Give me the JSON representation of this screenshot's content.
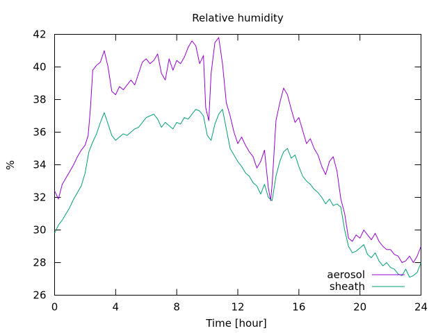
{
  "chart_data": {
    "type": "line",
    "title": "Relative humidity",
    "xlabel": "Time [hour]",
    "ylabel": "%",
    "xlim": [
      0,
      24
    ],
    "ylim": [
      26,
      42
    ],
    "xticks": [
      0,
      4,
      8,
      12,
      16,
      20,
      24
    ],
    "yticks": [
      26,
      28,
      30,
      32,
      34,
      36,
      38,
      40,
      42
    ],
    "grid": false,
    "legend_position": "bottom-right",
    "series": [
      {
        "name": "aerosol",
        "color": "#9400d3",
        "x": [
          0,
          0.25,
          0.5,
          0.75,
          1.0,
          1.25,
          1.5,
          1.75,
          2.0,
          2.2,
          2.35,
          2.5,
          2.75,
          3.0,
          3.25,
          3.5,
          3.75,
          4.0,
          4.25,
          4.5,
          4.75,
          5.0,
          5.25,
          5.5,
          5.75,
          6.0,
          6.25,
          6.5,
          6.75,
          7.0,
          7.25,
          7.5,
          7.75,
          8.0,
          8.25,
          8.5,
          8.75,
          9.0,
          9.25,
          9.5,
          9.75,
          9.9,
          10.1,
          10.25,
          10.5,
          10.75,
          11.0,
          11.25,
          11.5,
          11.75,
          12.0,
          12.25,
          12.5,
          12.75,
          13.0,
          13.25,
          13.5,
          13.75,
          14.0,
          14.15,
          14.25,
          14.5,
          14.75,
          15.0,
          15.25,
          15.5,
          15.75,
          16.0,
          16.25,
          16.5,
          16.75,
          17.0,
          17.25,
          17.5,
          17.75,
          18.0,
          18.25,
          18.5,
          18.75,
          19.0,
          19.25,
          19.5,
          19.75,
          20.0,
          20.25,
          20.5,
          20.75,
          21.0,
          21.25,
          21.5,
          21.75,
          22.0,
          22.25,
          22.5,
          22.75,
          23.0,
          23.25,
          23.5,
          23.75,
          24.0
        ],
        "y": [
          32.4,
          31.9,
          32.8,
          33.2,
          33.6,
          34.0,
          34.5,
          34.9,
          35.2,
          35.8,
          37.5,
          39.8,
          40.1,
          40.3,
          41.0,
          40.0,
          38.5,
          38.3,
          38.8,
          38.6,
          38.9,
          39.2,
          38.9,
          39.6,
          40.3,
          40.5,
          40.2,
          40.4,
          40.8,
          39.6,
          39.2,
          40.5,
          39.8,
          40.4,
          40.2,
          40.6,
          41.2,
          41.6,
          41.3,
          40.2,
          40.7,
          37.5,
          36.7,
          39.6,
          41.5,
          41.8,
          40.2,
          37.8,
          37.0,
          36.0,
          35.3,
          35.7,
          35.2,
          34.8,
          34.5,
          33.8,
          34.2,
          34.9,
          32.6,
          31.8,
          32.8,
          36.7,
          37.8,
          38.7,
          38.3,
          37.4,
          36.6,
          36.9,
          36.1,
          35.3,
          35.6,
          35.0,
          34.6,
          33.9,
          33.4,
          34.2,
          34.5,
          33.6,
          31.9,
          31.0,
          29.5,
          29.3,
          29.7,
          29.5,
          30.0,
          29.7,
          29.4,
          29.8,
          29.3,
          29.0,
          28.8,
          28.8,
          28.5,
          28.4,
          28.0,
          28.1,
          28.4,
          28.0,
          28.4,
          29.0
        ]
      },
      {
        "name": "sheath",
        "color": "#009e73",
        "x": [
          0,
          0.25,
          0.5,
          0.75,
          1.0,
          1.25,
          1.5,
          1.75,
          2.0,
          2.25,
          2.5,
          2.75,
          3.0,
          3.25,
          3.5,
          3.75,
          4.0,
          4.25,
          4.5,
          4.75,
          5.0,
          5.25,
          5.5,
          5.75,
          6.0,
          6.25,
          6.5,
          6.75,
          7.0,
          7.25,
          7.5,
          7.75,
          8.0,
          8.25,
          8.5,
          8.75,
          9.0,
          9.25,
          9.5,
          9.75,
          10.0,
          10.25,
          10.5,
          10.75,
          11.0,
          11.25,
          11.5,
          11.75,
          12.0,
          12.25,
          12.5,
          12.75,
          13.0,
          13.25,
          13.5,
          13.75,
          14.0,
          14.25,
          14.5,
          14.75,
          15.0,
          15.25,
          15.5,
          15.75,
          16.0,
          16.25,
          16.5,
          16.75,
          17.0,
          17.25,
          17.5,
          17.75,
          18.0,
          18.25,
          18.5,
          18.75,
          19.0,
          19.25,
          19.5,
          19.75,
          20.0,
          20.25,
          20.5,
          20.75,
          21.0,
          21.25,
          21.5,
          21.75,
          22.0,
          22.25,
          22.5,
          22.75,
          23.0,
          23.25,
          23.5,
          23.75,
          24.0
        ],
        "y": [
          29.8,
          30.3,
          30.6,
          31.0,
          31.4,
          31.9,
          32.3,
          32.7,
          33.5,
          34.8,
          35.4,
          35.9,
          36.6,
          37.2,
          36.5,
          35.8,
          35.5,
          35.7,
          35.9,
          35.8,
          36.0,
          36.2,
          36.3,
          36.6,
          36.9,
          37.0,
          37.1,
          36.8,
          36.3,
          36.6,
          36.4,
          36.2,
          36.6,
          36.5,
          36.9,
          36.8,
          37.1,
          37.4,
          37.3,
          37.0,
          35.8,
          35.5,
          36.5,
          37.1,
          37.4,
          36.2,
          35.0,
          34.6,
          34.2,
          33.9,
          33.5,
          33.3,
          32.9,
          32.7,
          32.2,
          32.8,
          32.0,
          31.8,
          33.3,
          34.2,
          34.8,
          35.0,
          34.4,
          34.6,
          33.9,
          33.3,
          33.0,
          32.8,
          32.5,
          32.3,
          32.0,
          31.6,
          31.9,
          31.5,
          31.6,
          31.4,
          30.0,
          29.0,
          28.6,
          28.7,
          28.9,
          29.1,
          28.5,
          28.3,
          28.6,
          28.1,
          27.8,
          28.0,
          27.7,
          27.6,
          27.3,
          27.2,
          27.6,
          27.1,
          27.2,
          27.4,
          28.0
        ]
      }
    ]
  }
}
